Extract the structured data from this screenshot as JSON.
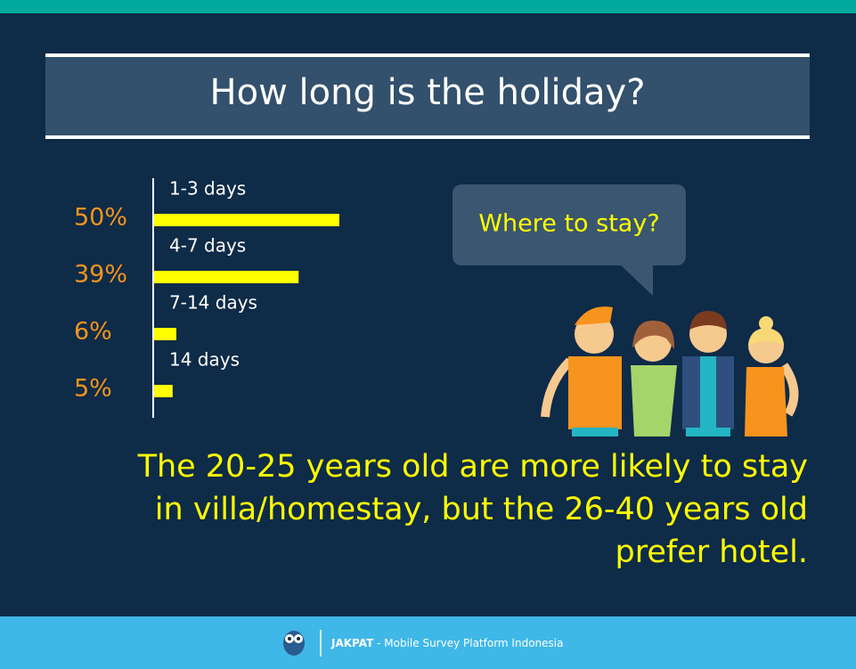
{
  "chart_data": {
    "type": "bar",
    "title": "How long is the holiday?",
    "categories": [
      "1-3 days",
      "4-7 days",
      "7-14 days",
      "14 days"
    ],
    "values": [
      50,
      39,
      6,
      5
    ],
    "value_labels": [
      "50%",
      "39%",
      "6%",
      "5%"
    ],
    "color": "#ffff00"
  },
  "callout": "Where to stay?",
  "note": "The 20-25 years old are more likely to stay in villa/homestay, but the 26-40 years old prefer hotel.",
  "footer": {
    "brand": "JAKPAT",
    "tagline": "- Mobile Survey Platform Indonesia"
  }
}
